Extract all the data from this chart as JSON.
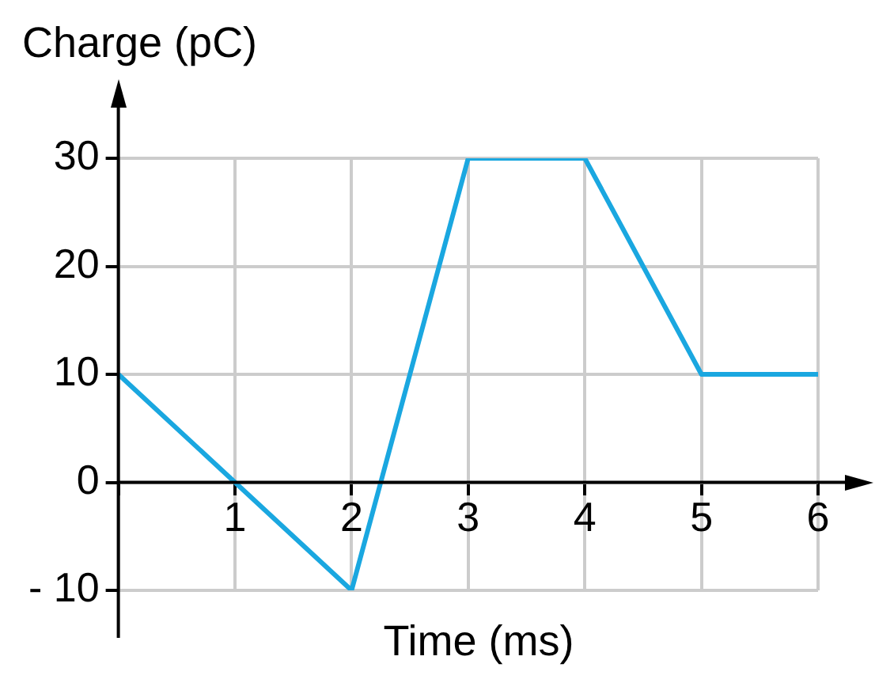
{
  "chart_data": {
    "type": "line",
    "xlabel": "Time (ms)",
    "ylabel": "Charge (pC)",
    "x": [
      0,
      1,
      2,
      3,
      4,
      5,
      6
    ],
    "series": [
      {
        "color": "#1aa7e0",
        "values": [
          10,
          0,
          -10,
          30,
          30,
          10,
          10
        ]
      }
    ],
    "xlim": [
      0,
      6
    ],
    "ylim": [
      -10,
      30
    ],
    "xticks": [
      {
        "value": 0,
        "label": null
      },
      1,
      2,
      3,
      4,
      5,
      6
    ],
    "yticks": [
      {
        "value": -10,
        "label": "- 10"
      },
      0,
      10,
      20,
      30
    ],
    "grid": true,
    "legend": false,
    "marker": "none",
    "line_style": "solid"
  }
}
